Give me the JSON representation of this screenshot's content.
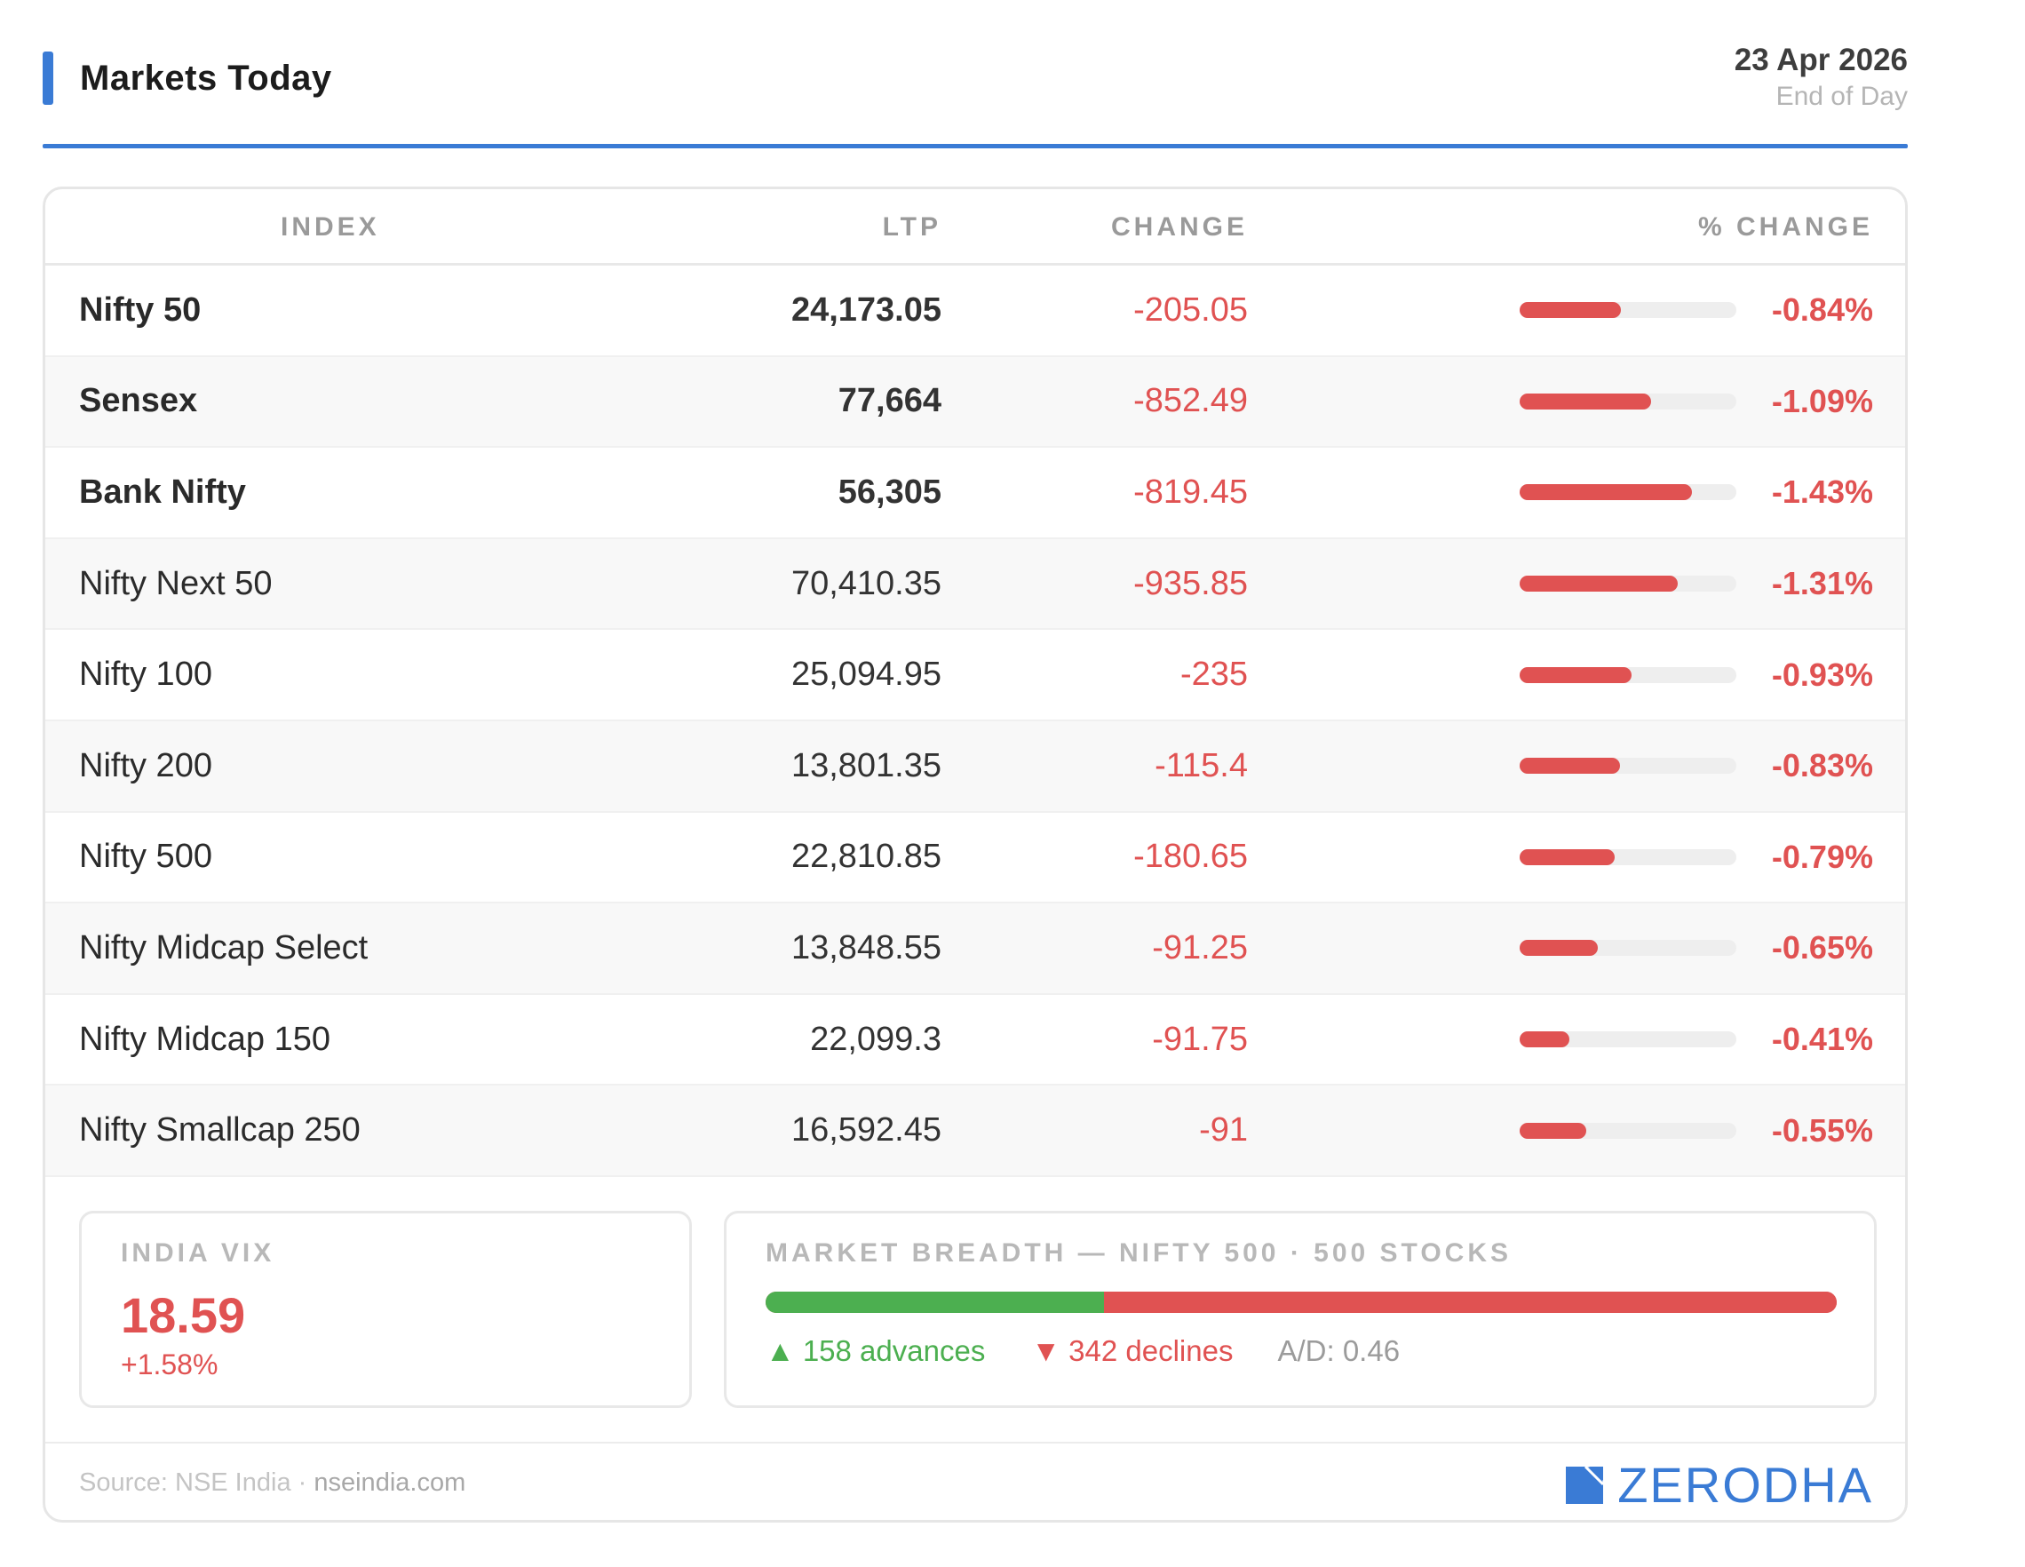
{
  "header": {
    "title": "Markets Today",
    "date": "23 Apr 2026",
    "subtitle": "End of Day",
    "accent_color": "#3a7bd5"
  },
  "table": {
    "columns": {
      "index": "INDEX",
      "ltp": "LTP",
      "change": "CHANGE",
      "pct_change": "% CHANGE"
    },
    "rows": [
      {
        "name": "Nifty 50",
        "ltp": "24,173.05",
        "change": "-205.05",
        "pct": "-0.84%",
        "pct_value": -0.84,
        "bold": true
      },
      {
        "name": "Sensex",
        "ltp": "77,664",
        "change": "-852.49",
        "pct": "-1.09%",
        "pct_value": -1.09,
        "bold": true
      },
      {
        "name": "Bank Nifty",
        "ltp": "56,305",
        "change": "-819.45",
        "pct": "-1.43%",
        "pct_value": -1.43,
        "bold": true
      },
      {
        "name": "Nifty Next 50",
        "ltp": "70,410.35",
        "change": "-935.85",
        "pct": "-1.31%",
        "pct_value": -1.31,
        "bold": false
      },
      {
        "name": "Nifty 100",
        "ltp": "25,094.95",
        "change": "-235",
        "pct": "-0.93%",
        "pct_value": -0.93,
        "bold": false
      },
      {
        "name": "Nifty 200",
        "ltp": "13,801.35",
        "change": "-115.4",
        "pct": "-0.83%",
        "pct_value": -0.83,
        "bold": false
      },
      {
        "name": "Nifty 500",
        "ltp": "22,810.85",
        "change": "-180.65",
        "pct": "-0.79%",
        "pct_value": -0.79,
        "bold": false
      },
      {
        "name": "Nifty Midcap Select",
        "ltp": "13,848.55",
        "change": "-91.25",
        "pct": "-0.65%",
        "pct_value": -0.65,
        "bold": false
      },
      {
        "name": "Nifty Midcap 150",
        "ltp": "22,099.3",
        "change": "-91.75",
        "pct": "-0.41%",
        "pct_value": -0.41,
        "bold": false
      },
      {
        "name": "Nifty Smallcap 250",
        "ltp": "16,592.45",
        "change": "-91",
        "pct": "-0.55%",
        "pct_value": -0.55,
        "bold": false
      }
    ],
    "negative_color": "#e05252"
  },
  "vix": {
    "label": "INDIA VIX",
    "value": "18.59",
    "change": "+1.58%"
  },
  "breadth": {
    "label": "MARKET BREADTH — NIFTY 500 · 500 STOCKS",
    "advances": 158,
    "declines": 342,
    "advances_text": "▲ 158 advances",
    "declines_text": "▼ 342 declines",
    "ad_ratio_text": "A/D: 0.46",
    "advance_color": "#4caf50",
    "decline_color": "#e05252"
  },
  "footer": {
    "source_prefix": "Source: NSE India",
    "separator": " · ",
    "source_domain": "nseindia.com",
    "brand": "ZERODHA",
    "brand_icon": "zerodha-logo-mark"
  }
}
